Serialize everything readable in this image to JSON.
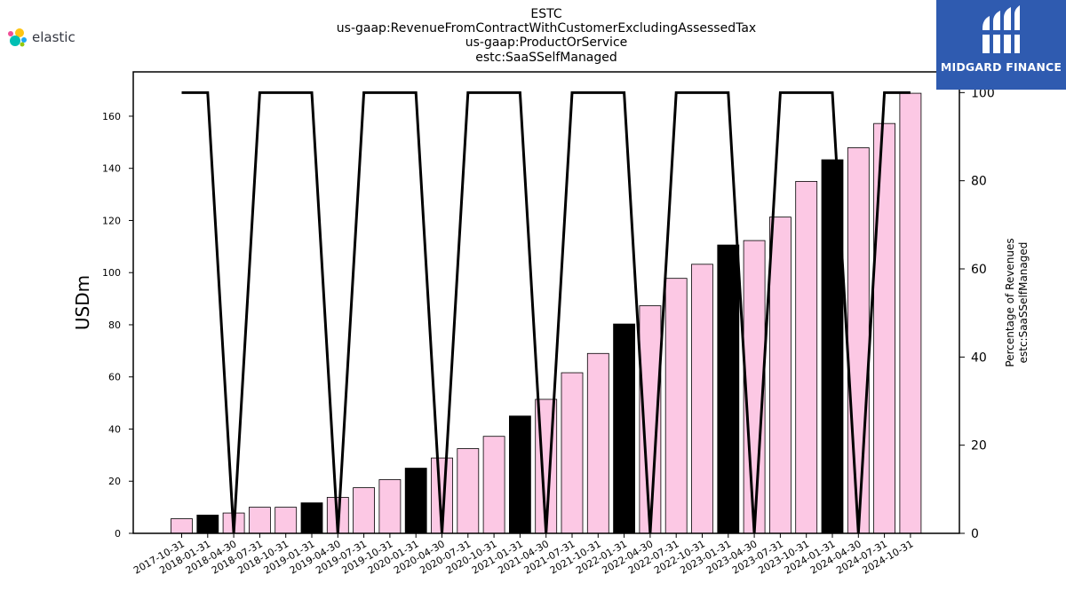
{
  "branding": {
    "elastic_text": "elastic",
    "midgard_text": "MIDGARD FINANCE"
  },
  "colors": {
    "bar_pink": "#fcc8e4",
    "bar_black": "#000000",
    "line": "#000000",
    "midgard_bg": "#2f5bb0"
  },
  "chart_data": {
    "type": "bar",
    "title_lines": [
      "ESTC",
      "us-gaap:RevenueFromContractWithCustomerExcludingAssessedTax",
      "us-gaap:ProductOrService",
      "estc:SaaSSelfManaged"
    ],
    "ylabel": "USDm",
    "y2label_lines": [
      "Percentage of Revenues",
      "estc:SaaSSelfManaged"
    ],
    "ylim": [
      0,
      177
    ],
    "y_ticks": [
      0,
      20,
      40,
      60,
      80,
      100,
      120,
      140,
      160
    ],
    "y2lim": [
      0,
      104.7
    ],
    "y2_ticks": [
      0,
      20,
      40,
      60,
      80,
      100
    ],
    "categories": [
      "2017-10-31",
      "2018-01-31",
      "2018-04-30",
      "2018-07-31",
      "2018-10-31",
      "2019-01-31",
      "2019-04-30",
      "2019-07-31",
      "2019-10-31",
      "2020-01-31",
      "2020-04-30",
      "2020-07-31",
      "2020-10-31",
      "2021-01-31",
      "2021-04-30",
      "2021-07-31",
      "2021-10-31",
      "2022-01-31",
      "2022-04-30",
      "2022-07-31",
      "2022-10-31",
      "2023-01-31",
      "2023-04-30",
      "2023-07-31",
      "2023-10-31",
      "2024-01-31",
      "2024-04-30",
      "2024-07-31",
      "2024-10-31"
    ],
    "series": [
      {
        "type": "bar",
        "values": [
          5.6,
          7.0,
          7.8,
          10.0,
          10.0,
          11.7,
          13.8,
          17.5,
          20.6,
          25.0,
          28.9,
          32.5,
          37.2,
          45.0,
          51.4,
          61.6,
          69.0,
          80.3,
          87.3,
          97.8,
          103.2,
          110.6,
          112.3,
          121.3,
          135.0,
          143.3,
          147.9,
          157.2,
          168.8
        ],
        "highlight": [
          false,
          true,
          false,
          false,
          false,
          true,
          false,
          false,
          false,
          true,
          false,
          false,
          false,
          true,
          false,
          false,
          false,
          true,
          false,
          false,
          false,
          true,
          false,
          false,
          false,
          true,
          false,
          false,
          false
        ]
      },
      {
        "type": "line",
        "axis": "right",
        "values": [
          100,
          100,
          0,
          100,
          100,
          100,
          0,
          100,
          100,
          100,
          0,
          100,
          100,
          100,
          0,
          100,
          100,
          100,
          0,
          100,
          100,
          100,
          0,
          100,
          100,
          100,
          0,
          100,
          100
        ]
      }
    ]
  }
}
